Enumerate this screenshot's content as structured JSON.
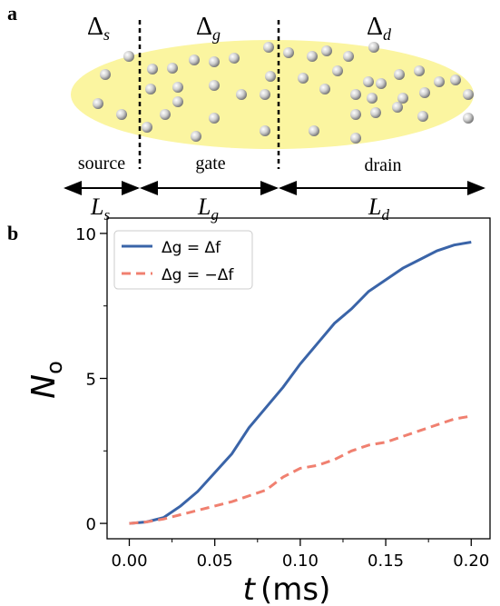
{
  "panel_labels": [
    "a",
    "b"
  ],
  "diagram": {
    "deltas": [
      {
        "base": "Δ",
        "sub": "s"
      },
      {
        "base": "Δ",
        "sub": "g"
      },
      {
        "base": "Δ",
        "sub": "d"
      }
    ],
    "regions": [
      "source",
      "gate",
      "drain"
    ],
    "lengths": [
      {
        "base": "L",
        "sub": "s"
      },
      {
        "base": "L",
        "sub": "g"
      },
      {
        "base": "L",
        "sub": "d"
      }
    ]
  },
  "chart_data": {
    "type": "line",
    "xlabel": [
      "t",
      "(ms)"
    ],
    "ylabel": [
      "N",
      "o"
    ],
    "x": [
      0,
      0.01,
      0.02,
      0.03,
      0.04,
      0.05,
      0.06,
      0.07,
      0.08,
      0.09,
      0.1,
      0.11,
      0.12,
      0.13,
      0.14,
      0.15,
      0.16,
      0.17,
      0.18,
      0.19,
      0.2
    ],
    "series": [
      {
        "name": "Δg = Δf",
        "color": "#3a64a8",
        "dash": false,
        "values": [
          0,
          0.05,
          0.2,
          0.6,
          1.1,
          1.75,
          2.4,
          3.3,
          4.0,
          4.7,
          5.5,
          6.2,
          6.9,
          7.4,
          8.0,
          8.4,
          8.8,
          9.1,
          9.4,
          9.6,
          9.7
        ]
      },
      {
        "name": "Δg = −Δf",
        "color": "#f08070",
        "dash": true,
        "values": [
          0,
          0.05,
          0.15,
          0.3,
          0.45,
          0.6,
          0.75,
          0.95,
          1.15,
          1.6,
          1.9,
          2.0,
          2.2,
          2.5,
          2.7,
          2.8,
          3.0,
          3.2,
          3.4,
          3.6,
          3.7
        ]
      }
    ],
    "xlim": [
      -0.013,
      0.211
    ],
    "ylim": [
      -0.53,
      10.53
    ],
    "xticks": [
      {
        "value": 0,
        "label": "0.00"
      },
      0.05,
      {
        "value": 0.1,
        "label": "0.10"
      },
      0.15,
      {
        "value": 0.2,
        "label": "0.20"
      }
    ],
    "yticks": [
      0,
      5,
      10
    ],
    "xminorticks": [
      0.025,
      0.075,
      0.125,
      0.175
    ],
    "yminorticks": [
      2.5,
      7.5
    ],
    "legend": "upper left",
    "grid": false
  }
}
